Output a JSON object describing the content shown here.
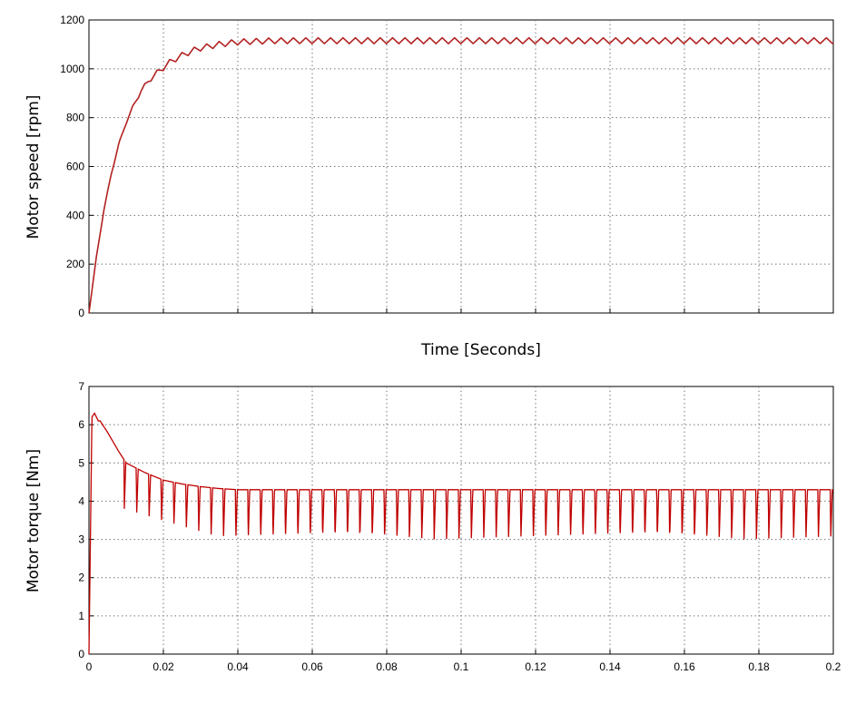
{
  "chart_data": [
    {
      "type": "line",
      "title": "",
      "xlabel": "Time [Seconds]",
      "ylabel": "Motor speed [rpm]",
      "xlim": [
        0,
        0.2
      ],
      "ylim": [
        0,
        1200
      ],
      "xticks": [],
      "yticks": [
        "0",
        "200",
        "400",
        "600",
        "800",
        "1000",
        "1200"
      ],
      "grid": true,
      "series": [
        {
          "name": "",
          "color": "#b22222",
          "x": [
            0,
            0.002,
            0.004,
            0.006,
            0.008,
            0.01,
            0.012,
            0.014,
            0.016,
            0.018,
            0.02,
            0.022,
            0.025,
            0.028,
            0.03,
            0.035,
            0.04,
            0.05,
            0.06,
            0.08,
            0.1,
            0.12,
            0.14,
            0.16,
            0.18,
            0.2
          ],
          "y": [
            0,
            230,
            420,
            570,
            690,
            780,
            850,
            910,
            950,
            980,
            1005,
            1030,
            1055,
            1075,
            1085,
            1100,
            1110,
            1115,
            1115,
            1115,
            1115,
            1115,
            1115,
            1115,
            1115,
            1115
          ],
          "ripple": {
            "amplitude": 12,
            "period": 0.00333
          }
        }
      ]
    },
    {
      "type": "line",
      "title": "",
      "xlabel": "",
      "ylabel": "Motor torque [Nm]",
      "xlim": [
        0,
        0.2
      ],
      "ylim": [
        0,
        7
      ],
      "xticks": [
        "0",
        "0.02",
        "0.04",
        "0.06",
        "0.08",
        "0.1",
        "0.12",
        "0.14",
        "0.16",
        "0.18",
        "0.2"
      ],
      "yticks": [
        "0",
        "1",
        "2",
        "3",
        "4",
        "5",
        "6",
        "7"
      ],
      "grid": true,
      "series": [
        {
          "name": "",
          "color": "#c00000",
          "x": [
            0,
            0.0008,
            0.0015,
            0.002,
            0.0025,
            0.003,
            0.005,
            0.008,
            0.01,
            0.015,
            0.02,
            0.025,
            0.03,
            0.035,
            0.04,
            0.2
          ],
          "y": [
            0,
            6.2,
            6.3,
            6.2,
            6.1,
            6.1,
            5.8,
            5.3,
            5.0,
            4.75,
            4.55,
            4.45,
            4.38,
            4.33,
            4.3,
            4.3
          ],
          "dips": {
            "period": 0.00333,
            "start": 0.0095,
            "min_early": 3.8,
            "min_late": 3.0
          }
        }
      ]
    }
  ]
}
